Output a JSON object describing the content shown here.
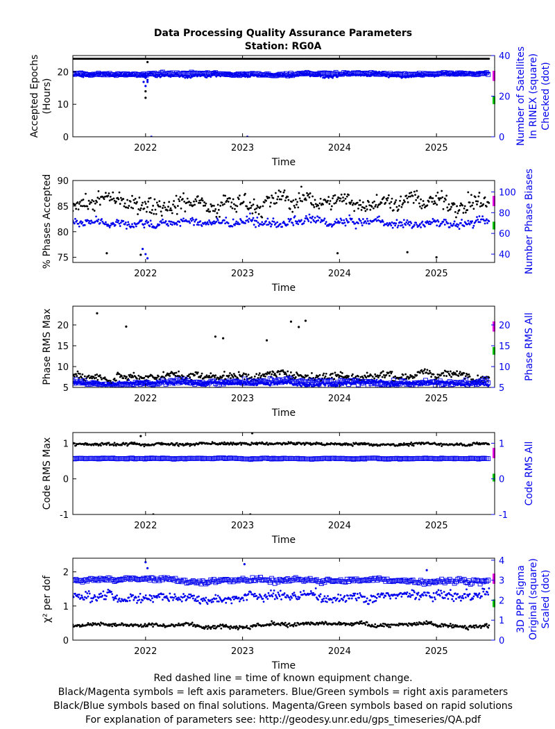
{
  "title": "Data Processing Quality Assurance Parameters",
  "subtitle": "Station: RG0A",
  "footer": [
    "Red dashed line = time of known equipment change.",
    "Black/Magenta symbols = left axis parameters. Blue/Green symbols = right axis parameters",
    "Black/Blue symbols based on final solutions.  Magenta/Green symbols based on rapid solutions",
    "For explanation of parameters see: http://geodesy.unr.edu/gps_timeseries/QA.pdf"
  ],
  "colors": {
    "left": "#000000",
    "right": "#0000ee",
    "rapid_left": "#ee00ee",
    "rapid_right": "#00cc00"
  },
  "chart_data": [
    {
      "type": "scatter",
      "xlabel": "Time",
      "xlim": [
        2021.25,
        2025.6
      ],
      "xticks": [
        2022,
        2023,
        2024,
        2025
      ],
      "ylabel": [
        "Accepted Epochs",
        "(Hours)"
      ],
      "ylim": [
        0,
        25
      ],
      "yticks": [
        0,
        10,
        20
      ],
      "y2label": [
        "Number of Satellites",
        "In RINEX (square)",
        "Checked (dot)"
      ],
      "y2lim": [
        0,
        40
      ],
      "y2ticks": [
        0,
        20,
        40
      ],
      "series": [
        {
          "axis": "left",
          "style": "dot",
          "base": 24,
          "noise": 0.05,
          "min": 24,
          "max": 24,
          "out": [
            [
              2022.0,
              12
            ],
            [
              2022.02,
              23
            ],
            [
              2022.0,
              14
            ]
          ]
        },
        {
          "axis": "right",
          "style": "square",
          "base": 31,
          "noise": 0.6,
          "min": 30,
          "max": 33,
          "out": [
            [
              2022.0,
              29
            ],
            [
              2022.02,
              27
            ]
          ]
        },
        {
          "axis": "right",
          "style": "dot",
          "base": 30.5,
          "noise": 1.0,
          "min": 29,
          "max": 32,
          "out": [
            [
              2021.98,
              27
            ],
            [
              2022.0,
              25
            ],
            [
              2022.02,
              28
            ],
            [
              2022.06,
              0
            ],
            [
              2023.05,
              0
            ]
          ]
        }
      ]
    },
    {
      "type": "scatter",
      "xlabel": "Time",
      "xlim": [
        2021.25,
        2025.6
      ],
      "xticks": [
        2022,
        2023,
        2024,
        2025
      ],
      "ylabel": [
        "% Phases Accepted"
      ],
      "ylim": [
        74,
        90
      ],
      "yticks": [
        75,
        80,
        85,
        90
      ],
      "y2label": [
        "Number Phase Biases"
      ],
      "y2lim": [
        32,
        111
      ],
      "y2ticks": [
        40,
        60,
        80,
        100
      ],
      "series": [
        {
          "axis": "left",
          "style": "dot",
          "base": 86,
          "noise": 1.8,
          "min": 74,
          "max": 89.5,
          "out": [
            [
              2021.6,
              75.8
            ],
            [
              2021.95,
              75.5
            ],
            [
              2023.98,
              75.8
            ],
            [
              2024.7,
              76
            ],
            [
              2025.0,
              75
            ]
          ]
        },
        {
          "axis": "right",
          "style": "dot",
          "base": 70,
          "noise": 4.5,
          "min": 50,
          "max": 100,
          "out": [
            [
              2022.0,
              40
            ],
            [
              2022.02,
              36
            ],
            [
              2021.97,
              45
            ]
          ]
        }
      ]
    },
    {
      "type": "scatter",
      "xlabel": "Time",
      "xlim": [
        2021.25,
        2025.6
      ],
      "xticks": [
        2022,
        2023,
        2024,
        2025
      ],
      "ylabel": [
        "Phase RMS Max"
      ],
      "ylim": [
        5,
        24.5
      ],
      "yticks": [
        5,
        10,
        15,
        20
      ],
      "y2label": [
        "Phase RMS All"
      ],
      "y2lim": [
        5,
        24.5
      ],
      "y2ticks": [
        5,
        10,
        15,
        20
      ],
      "series": [
        {
          "axis": "left",
          "style": "dot",
          "base": 8,
          "noise": 1.0,
          "min": 6,
          "max": 17,
          "out": [
            [
              2021.5,
              22.8
            ],
            [
              2021.8,
              19.6
            ],
            [
              2022.8,
              16.8
            ],
            [
              2023.02,
              24.5
            ],
            [
              2023.5,
              20.8
            ],
            [
              2023.58,
              19.5
            ],
            [
              2023.65,
              21
            ],
            [
              2022.72,
              17.2
            ],
            [
              2023.25,
              16.3
            ]
          ]
        },
        {
          "axis": "right",
          "style": "square",
          "base": 6.2,
          "noise": 0.7,
          "min": 5,
          "max": 8.5,
          "out": []
        },
        {
          "axis": "right",
          "style": "dot",
          "base": 6.0,
          "noise": 0.5,
          "min": 5,
          "max": 7.5,
          "out": []
        }
      ]
    },
    {
      "type": "scatter",
      "xlabel": "Time",
      "xlim": [
        2021.25,
        2025.6
      ],
      "xticks": [
        2022,
        2023,
        2024,
        2025
      ],
      "ylabel": [
        "Code RMS Max"
      ],
      "ylim": [
        -1,
        1.3
      ],
      "yticks": [
        -1,
        0,
        1
      ],
      "y2label": [
        "Code RMS All"
      ],
      "y2lim": [
        -1,
        1.3
      ],
      "y2ticks": [
        -1,
        0,
        1
      ],
      "series": [
        {
          "axis": "left",
          "style": "dot",
          "base": 0.98,
          "noise": 0.04,
          "min": 0.8,
          "max": 1.15,
          "out": [
            [
              2021.95,
              1.2
            ],
            [
              2023.1,
              1.28
            ],
            [
              2022.08,
              -1
            ],
            [
              2023.08,
              -1
            ]
          ]
        },
        {
          "axis": "right",
          "style": "square",
          "base": 0.57,
          "noise": 0.015,
          "min": 0.52,
          "max": 0.62,
          "out": []
        }
      ]
    },
    {
      "type": "scatter",
      "xlabel": "Time",
      "xlim": [
        2021.25,
        2025.6
      ],
      "xticks": [
        2022,
        2023,
        2024,
        2025
      ],
      "ylabel": [
        "χ² per dof"
      ],
      "ylim": [
        0,
        2.4
      ],
      "yticks": [
        0,
        1,
        2
      ],
      "y2label": [
        "3D PPP Sigma",
        "Original (square)",
        "Scaled (dot)"
      ],
      "y2lim": [
        0,
        4.1
      ],
      "y2ticks": [
        0,
        1,
        2,
        3,
        4
      ],
      "series": [
        {
          "axis": "left",
          "style": "dot",
          "base": 0.45,
          "noise": 0.06,
          "min": 0.3,
          "max": 0.8,
          "out": []
        },
        {
          "axis": "right",
          "style": "square",
          "base": 3.0,
          "noise": 0.12,
          "min": 2.8,
          "max": 3.4,
          "out": [
            [
              2022.0,
              3.9
            ],
            [
              2022.02,
              3.6
            ],
            [
              2023.02,
              3.8
            ],
            [
              2024.9,
              3.5
            ]
          ]
        },
        {
          "axis": "right",
          "style": "dot",
          "base": 2.2,
          "noise": 0.25,
          "min": 1.5,
          "max": 3.0,
          "out": []
        }
      ]
    }
  ]
}
